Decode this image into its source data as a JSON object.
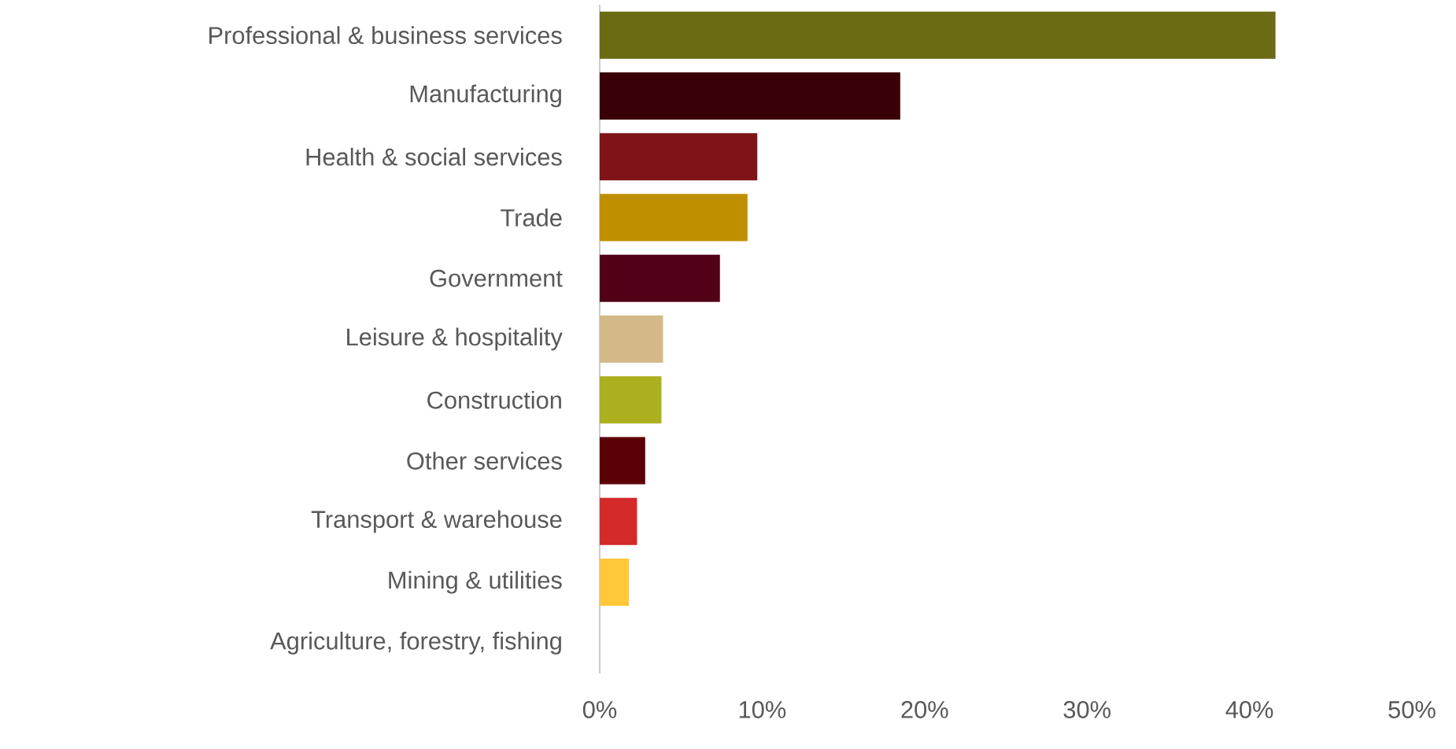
{
  "chart_data": {
    "type": "bar",
    "orientation": "horizontal",
    "categories": [
      "Professional & business services",
      "Manufacturing",
      "Health & social services",
      "Trade",
      "Government",
      "Leisure & hospitality",
      "Construction",
      "Other services",
      "Transport & warehouse",
      "Mining & utilities",
      "Agriculture, forestry, fishing"
    ],
    "values": [
      41.6,
      18.5,
      9.7,
      9.1,
      7.4,
      3.9,
      3.8,
      2.8,
      2.3,
      1.8,
      0
    ],
    "colors": [
      "#6b6b14",
      "#3a0008",
      "#7f1418",
      "#bf8f00",
      "#520018",
      "#d4b887",
      "#acb01f",
      "#5c0008",
      "#d42a2a",
      "#ffc73a",
      "#8a8a8a"
    ],
    "xlim": [
      0,
      50
    ],
    "xticks": [
      {
        "value": 0,
        "label": "0%"
      },
      {
        "value": 10,
        "label": "10%"
      },
      {
        "value": 20,
        "label": "20%"
      },
      {
        "value": 30,
        "label": "30%"
      },
      {
        "value": 40,
        "label": "40%"
      },
      {
        "value": 50,
        "label": "50%"
      }
    ]
  }
}
